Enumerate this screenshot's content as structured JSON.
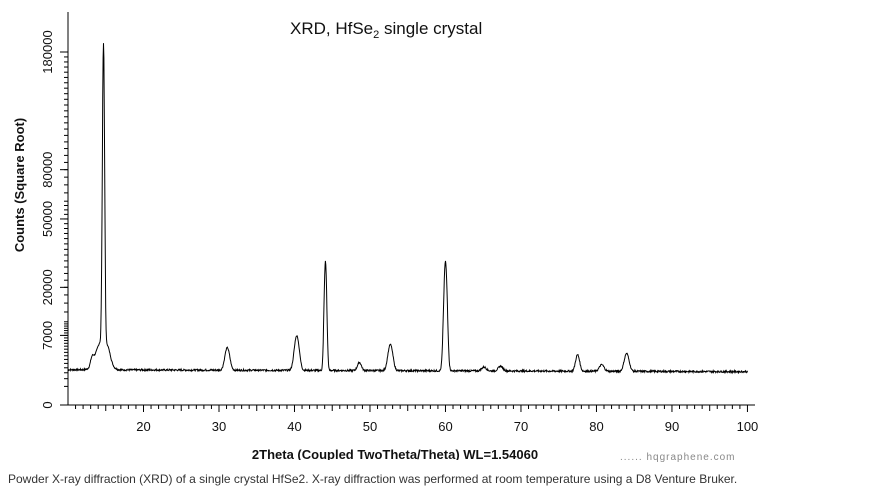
{
  "chart_data": {
    "type": "line",
    "title": "XRD, HfSe",
    "title_subscript": "2",
    "title_suffix": " single crystal",
    "xlabel": "2Theta (Coupled TwoTheta/Theta) WL=1.54060",
    "ylabel": "Counts (Square Root)",
    "xlim": [
      10,
      101
    ],
    "ylim": [
      0,
      180000
    ],
    "y_scale": "sqrt",
    "x_ticks": [
      20,
      30,
      40,
      50,
      60,
      70,
      80,
      90,
      100
    ],
    "y_ticks": [
      0,
      7000,
      20000,
      50000,
      80000,
      180000
    ],
    "grid": false,
    "baseline": 1800,
    "peaks": [
      {
        "x": 13.2,
        "y": 2800,
        "w": 0.2
      },
      {
        "x": 14.5,
        "y": 6000,
        "w": 0.7
      },
      {
        "x": 14.7,
        "y": 185000,
        "w": 0.12
      },
      {
        "x": 15.3,
        "y": 2800,
        "w": 0.3
      },
      {
        "x": 31.1,
        "y": 4800,
        "w": 0.3
      },
      {
        "x": 40.3,
        "y": 7000,
        "w": 0.3
      },
      {
        "x": 44.1,
        "y": 30000,
        "w": 0.15
      },
      {
        "x": 48.6,
        "y": 2700,
        "w": 0.25
      },
      {
        "x": 52.7,
        "y": 5400,
        "w": 0.3
      },
      {
        "x": 60.0,
        "y": 30000,
        "w": 0.2
      },
      {
        "x": 65.1,
        "y": 2200,
        "w": 0.3
      },
      {
        "x": 67.3,
        "y": 2300,
        "w": 0.3
      },
      {
        "x": 77.5,
        "y": 3800,
        "w": 0.25
      },
      {
        "x": 80.7,
        "y": 2500,
        "w": 0.3
      },
      {
        "x": 84.0,
        "y": 4000,
        "w": 0.3
      }
    ]
  },
  "watermark": "...... hqgraphene.com",
  "caption": "Powder X-ray diffraction (XRD) of a single crystal HfSe2. X-ray diffraction was performed at room temperature using a D8 Venture Bruker."
}
